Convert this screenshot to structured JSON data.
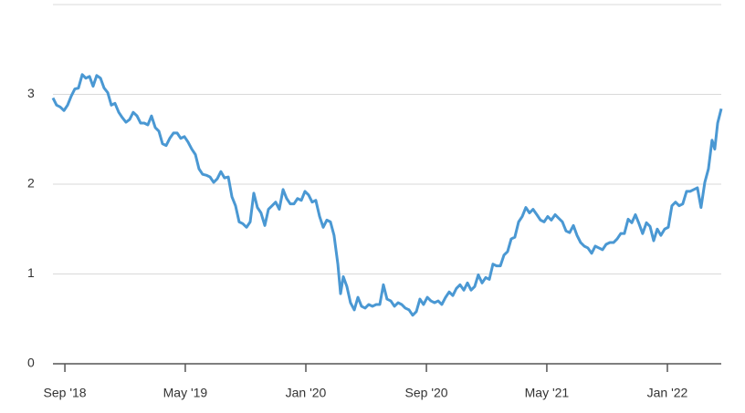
{
  "chart_data": {
    "type": "line",
    "color": "#4a98d3",
    "x": [
      2018.601,
      2018.621,
      2018.641,
      2018.662,
      2018.682,
      2018.702,
      2018.722,
      2018.742,
      2018.763,
      2018.783,
      2018.803,
      2018.823,
      2018.843,
      2018.864,
      2018.884,
      2018.904,
      2018.924,
      2018.944,
      2018.965,
      2018.985,
      2019.005,
      2019.025,
      2019.045,
      2019.066,
      2019.086,
      2019.106,
      2019.126,
      2019.146,
      2019.167,
      2019.187,
      2019.207,
      2019.227,
      2019.247,
      2019.268,
      2019.288,
      2019.308,
      2019.328,
      2019.348,
      2019.369,
      2019.389,
      2019.409,
      2019.429,
      2019.449,
      2019.47,
      2019.49,
      2019.51,
      2019.53,
      2019.55,
      2019.571,
      2019.591,
      2019.611,
      2019.631,
      2019.651,
      2019.672,
      2019.692,
      2019.712,
      2019.732,
      2019.752,
      2019.773,
      2019.793,
      2019.813,
      2019.833,
      2019.853,
      2019.874,
      2019.894,
      2019.914,
      2019.934,
      2019.954,
      2019.975,
      2019.995,
      2020.015,
      2020.035,
      2020.055,
      2020.076,
      2020.096,
      2020.116,
      2020.136,
      2020.156,
      2020.177,
      2020.192,
      2020.207,
      2020.227,
      2020.247,
      2020.268,
      2020.288,
      2020.308,
      2020.328,
      2020.348,
      2020.369,
      2020.389,
      2020.409,
      2020.429,
      2020.449,
      2020.47,
      2020.49,
      2020.51,
      2020.53,
      2020.55,
      2020.571,
      2020.591,
      2020.611,
      2020.631,
      2020.651,
      2020.672,
      2020.692,
      2020.712,
      2020.732,
      2020.752,
      2020.773,
      2020.793,
      2020.813,
      2020.833,
      2020.853,
      2020.874,
      2020.894,
      2020.914,
      2020.934,
      2020.954,
      2020.975,
      2020.995,
      2021.015,
      2021.035,
      2021.055,
      2021.076,
      2021.096,
      2021.116,
      2021.136,
      2021.156,
      2021.177,
      2021.197,
      2021.217,
      2021.237,
      2021.257,
      2021.278,
      2021.298,
      2021.318,
      2021.338,
      2021.358,
      2021.379,
      2021.399,
      2021.419,
      2021.439,
      2021.459,
      2021.48,
      2021.5,
      2021.52,
      2021.54,
      2021.56,
      2021.581,
      2021.601,
      2021.621,
      2021.641,
      2021.661,
      2021.682,
      2021.702,
      2021.722,
      2021.742,
      2021.762,
      2021.783,
      2021.803,
      2021.823,
      2021.843,
      2021.863,
      2021.884,
      2021.904,
      2021.924,
      2021.944,
      2021.964,
      2021.985,
      2022.005,
      2022.025,
      2022.045,
      2022.065,
      2022.085,
      2022.106,
      2022.126,
      2022.146,
      2022.166,
      2022.186,
      2022.207,
      2022.227,
      2022.247,
      2022.262,
      2022.278,
      2022.298
    ],
    "values": [
      2.96,
      2.88,
      2.86,
      2.82,
      2.88,
      2.98,
      3.06,
      3.07,
      3.22,
      3.18,
      3.2,
      3.09,
      3.21,
      3.18,
      3.07,
      3.02,
      2.88,
      2.9,
      2.8,
      2.74,
      2.69,
      2.72,
      2.8,
      2.76,
      2.68,
      2.68,
      2.66,
      2.76,
      2.63,
      2.59,
      2.45,
      2.43,
      2.51,
      2.57,
      2.57,
      2.51,
      2.53,
      2.47,
      2.39,
      2.33,
      2.17,
      2.11,
      2.1,
      2.08,
      2.02,
      2.06,
      2.14,
      2.07,
      2.08,
      1.86,
      1.76,
      1.58,
      1.56,
      1.52,
      1.58,
      1.9,
      1.74,
      1.68,
      1.54,
      1.72,
      1.76,
      1.8,
      1.72,
      1.94,
      1.84,
      1.78,
      1.78,
      1.84,
      1.82,
      1.92,
      1.88,
      1.8,
      1.82,
      1.64,
      1.52,
      1.6,
      1.58,
      1.43,
      1.11,
      0.78,
      0.97,
      0.86,
      0.68,
      0.6,
      0.74,
      0.64,
      0.62,
      0.66,
      0.64,
      0.66,
      0.66,
      0.88,
      0.72,
      0.7,
      0.64,
      0.68,
      0.66,
      0.62,
      0.6,
      0.54,
      0.58,
      0.72,
      0.66,
      0.74,
      0.7,
      0.68,
      0.7,
      0.66,
      0.74,
      0.8,
      0.76,
      0.84,
      0.88,
      0.82,
      0.9,
      0.82,
      0.86,
      0.99,
      0.9,
      0.96,
      0.94,
      1.11,
      1.09,
      1.09,
      1.21,
      1.25,
      1.39,
      1.41,
      1.58,
      1.64,
      1.74,
      1.68,
      1.72,
      1.66,
      1.6,
      1.58,
      1.64,
      1.6,
      1.66,
      1.62,
      1.58,
      1.48,
      1.46,
      1.54,
      1.43,
      1.35,
      1.31,
      1.29,
      1.23,
      1.31,
      1.29,
      1.27,
      1.33,
      1.35,
      1.35,
      1.39,
      1.45,
      1.45,
      1.61,
      1.57,
      1.66,
      1.56,
      1.45,
      1.57,
      1.53,
      1.37,
      1.5,
      1.43,
      1.5,
      1.52,
      1.76,
      1.8,
      1.76,
      1.78,
      1.92,
      1.92,
      1.94,
      1.96,
      1.74,
      2.02,
      2.17,
      2.49,
      2.39,
      2.68,
      2.84
    ],
    "xlim": [
      2018.601,
      2022.298
    ],
    "xticks": [
      {
        "value": 2018.667,
        "label": "Sep '18"
      },
      {
        "value": 2019.333,
        "label": "May '19"
      },
      {
        "value": 2020,
        "label": "Jan '20"
      },
      {
        "value": 2020.667,
        "label": "Sep '20"
      },
      {
        "value": 2021.333,
        "label": "May '21"
      },
      {
        "value": 2022,
        "label": "Jan '22"
      }
    ],
    "ylim": [
      0,
      4
    ],
    "yticks": [
      0,
      1,
      2,
      3
    ],
    "grid": true
  }
}
